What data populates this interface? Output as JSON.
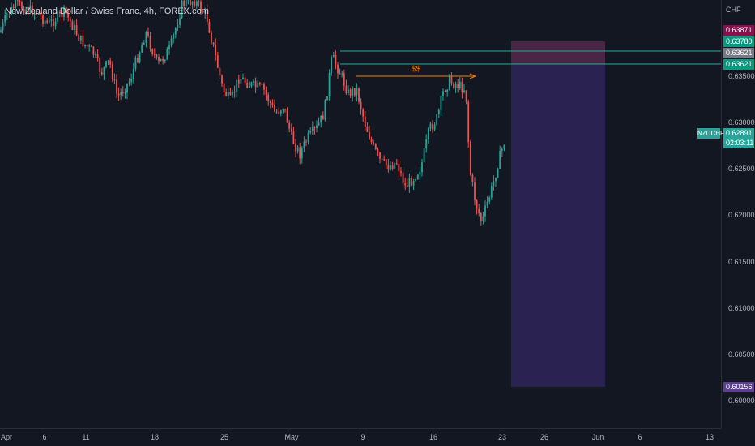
{
  "header": {
    "title": "New Zealand Dollar / Swiss Franc, 4h, FOREX.com",
    "currency": "CHF"
  },
  "price_scale": {
    "ticks": [
      "0.63500",
      "0.63000",
      "0.62500",
      "0.62000",
      "0.61500",
      "0.61000",
      "0.60500",
      "0.60000"
    ]
  },
  "time_scale": {
    "ticks": [
      "Apr",
      "6",
      "11",
      "18",
      "25",
      "May",
      "9",
      "16",
      "23",
      "26",
      "Jun",
      "6",
      "13"
    ]
  },
  "tags": [
    {
      "text": "0.63871",
      "color": "#880e4f"
    },
    {
      "text": "0.63780",
      "color": "#089981"
    },
    {
      "text": "0.63621",
      "color": "#787b86"
    },
    {
      "text": "0.63621",
      "color": "#089981"
    },
    {
      "text": "0.62891",
      "color": "#26a69a"
    },
    {
      "text": "02:03:11",
      "color": "#26a69a"
    },
    {
      "text": "0.60156",
      "color": "#5d3f8f"
    }
  ],
  "symbol_tag": "NZDCHF",
  "annotation": "$$",
  "colors": {
    "background": "#131722",
    "up": "#26a69a",
    "down": "#ef5350",
    "zone": "#2a2250",
    "zone_top": "#4a2545",
    "bottom_zone": "#14303a",
    "level_line": "#22ab94",
    "arrow": "#f57c00"
  }
}
